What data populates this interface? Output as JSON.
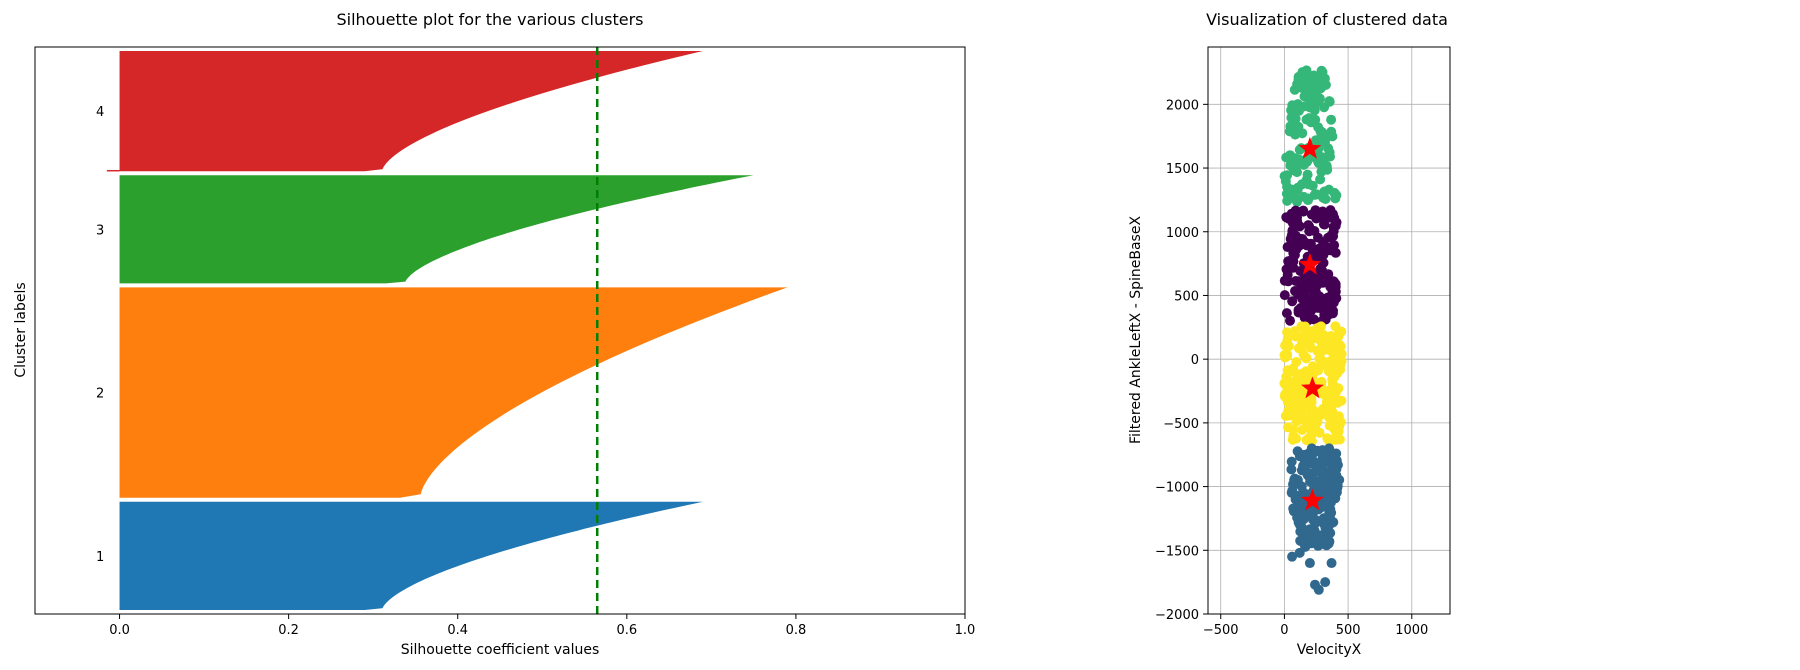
{
  "chart_data": [
    {
      "type": "area",
      "title": "Silhouette plot for the various clusters",
      "xlabel": "Silhouette coefficient values",
      "ylabel": "Cluster labels",
      "xlim": [
        -0.1,
        1.0
      ],
      "xticks": [
        0.0,
        0.2,
        0.4,
        0.6,
        0.8,
        1.0
      ],
      "xtick_labels": [
        "0.0",
        "0.2",
        "0.4",
        "0.6",
        "0.8",
        "1.0"
      ],
      "grid": false,
      "average_silhouette_line": {
        "value": 0.565,
        "color": "#008000",
        "style": "dashed"
      },
      "clusters": [
        {
          "label": "1",
          "color": "#1f77b4",
          "samples": 270,
          "max_value": 0.69,
          "min_value": 0.0
        },
        {
          "label": "2",
          "color": "#ff7f0e",
          "samples": 525,
          "max_value": 0.79,
          "min_value": 0.0
        },
        {
          "label": "3",
          "color": "#2ca02c",
          "samples": 270,
          "max_value": 0.75,
          "min_value": 0.0
        },
        {
          "label": "4",
          "color": "#d62728",
          "samples": 300,
          "max_value": 0.69,
          "min_value": -0.015
        }
      ]
    },
    {
      "type": "scatter",
      "title": "Visualization of clustered data",
      "xlabel": "VelocityX",
      "ylabel": "Filtered AnkleLeftX - SpineBaseX",
      "xlim": [
        -600,
        1300
      ],
      "ylim": [
        -2000,
        2450
      ],
      "xticks": [
        -500,
        0,
        500,
        1000
      ],
      "xtick_labels": [
        "−500",
        "0",
        "500",
        "1000"
      ],
      "yticks": [
        -2000,
        -1500,
        -1000,
        -500,
        0,
        500,
        1000,
        1500,
        2000
      ],
      "ytick_labels": [
        "−2000",
        "−1500",
        "−1000",
        "−500",
        "0",
        "500",
        "1000",
        "1500",
        "2000"
      ],
      "grid": true,
      "clusters": [
        {
          "color": "#35b779",
          "x_range": [
            0,
            420
          ],
          "y_range": [
            1230,
            2270
          ],
          "count": 160
        },
        {
          "color": "#440154",
          "x_range": [
            0,
            420
          ],
          "y_range": [
            300,
            1180
          ],
          "count": 190
        },
        {
          "color": "#fde725",
          "x_range": [
            0,
            450
          ],
          "y_range": [
            -650,
            270
          ],
          "count": 230
        },
        {
          "color": "#31688e",
          "x_range": [
            50,
            430
          ],
          "y_range": [
            -1480,
            -700
          ],
          "count": 200
        }
      ],
      "outliers": {
        "color": "#31688e",
        "points": [
          [
            120,
            -1520
          ],
          [
            60,
            -1550
          ],
          [
            200,
            -1600
          ],
          [
            370,
            -1600
          ],
          [
            240,
            -1770
          ],
          [
            320,
            -1750
          ],
          [
            270,
            -1810
          ]
        ]
      },
      "centroids": {
        "marker": "star",
        "color": "#ff0000",
        "points": [
          [
            200,
            1650
          ],
          [
            200,
            740
          ],
          [
            220,
            -230
          ],
          [
            220,
            -1110
          ]
        ]
      }
    }
  ]
}
